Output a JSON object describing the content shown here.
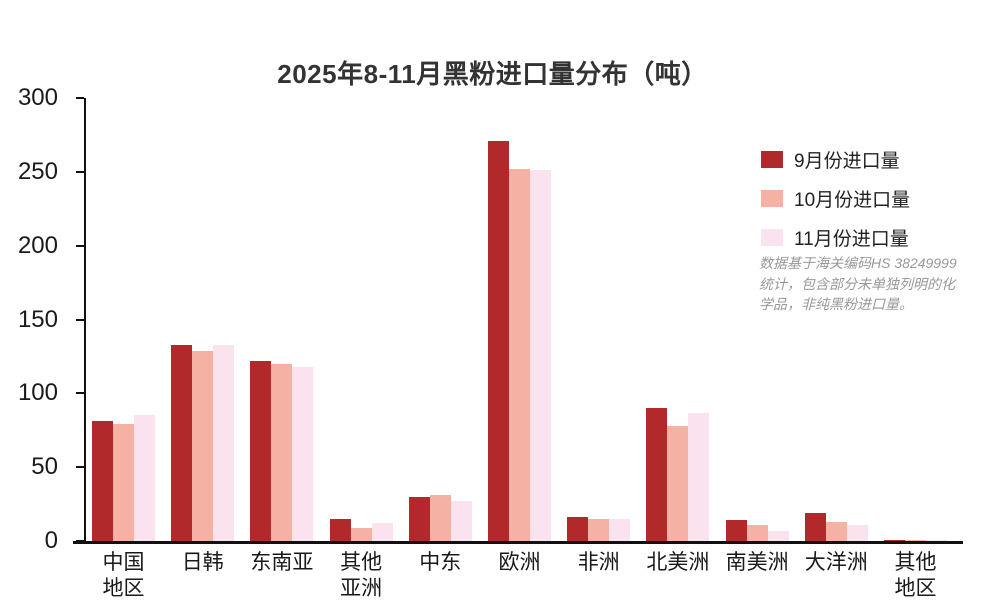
{
  "title": "2025年8-11月黑粉进口量分布（吨）",
  "annotation": "数据基于海关编码HS 38249999统计，包含部分未单独列明的化学品，非纯黑粉进口量。",
  "colors": {
    "series_sep": "#B2292C",
    "series_oct": "#F4B1A4",
    "series_nov": "#FAE2EE",
    "axis": "#111111",
    "title_text": "#333333",
    "annotation_text": "#999999"
  },
  "chart_data": {
    "type": "bar",
    "title": "2025年8-11月黑粉进口量分布（吨）",
    "xlabel": "",
    "ylabel": "",
    "ylim": [
      0,
      300
    ],
    "yticks": [
      0,
      50,
      100,
      150,
      200,
      250,
      300
    ],
    "grid": false,
    "legend_position": "top-right",
    "categories": [
      "中国地区",
      "日韩",
      "东南亚",
      "其他亚洲",
      "中东",
      "欧洲",
      "非洲",
      "北美洲",
      "南美洲",
      "大洋洲",
      "其他地区"
    ],
    "category_display": [
      "中国\n地区",
      "日韩",
      "东南亚",
      "其他\n亚洲",
      "中东",
      "欧洲",
      "非洲",
      "北美洲",
      "南美洲",
      "大洋洲",
      "其他\n地区"
    ],
    "series": [
      {
        "name": "9月份进口量",
        "color": "#B2292C",
        "values": [
          81,
          133,
          122,
          15,
          30,
          271,
          16,
          90,
          14,
          19,
          1
        ]
      },
      {
        "name": "10月份进口量",
        "color": "#F4B1A4",
        "values": [
          79,
          129,
          120,
          9,
          31,
          252,
          15,
          78,
          11,
          13,
          1
        ]
      },
      {
        "name": "11月份进口量",
        "color": "#FAE2EE",
        "values": [
          85,
          133,
          118,
          12,
          27,
          251,
          15,
          87,
          7,
          11,
          0.5
        ]
      }
    ]
  }
}
